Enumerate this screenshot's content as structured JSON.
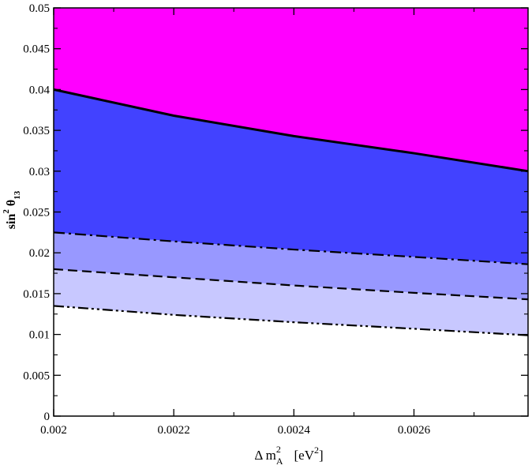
{
  "chart_data": {
    "type": "area",
    "title": "",
    "xlabel": {
      "main": "Δ m",
      "sup": "2",
      "sub": "A",
      "unit_open": "[eV",
      "unit_sup": "2",
      "unit_close": "]"
    },
    "ylabel": {
      "main": "sin",
      "sup": "2",
      "theta": "θ",
      "sub": "13"
    },
    "xlim": [
      0.002,
      0.00279
    ],
    "ylim": [
      0,
      0.05
    ],
    "x_ticks": [
      0.002,
      0.0022,
      0.0024,
      0.0026
    ],
    "x_tick_labels": [
      "0.002",
      "0.0022",
      "0.0024",
      "0.0026"
    ],
    "y_ticks": [
      0,
      0.005,
      0.01,
      0.015,
      0.02,
      0.025,
      0.03,
      0.035,
      0.04,
      0.045,
      0.05
    ],
    "y_tick_labels": [
      "0",
      "0.005",
      "0.01",
      "0.015",
      "0.02",
      "0.025",
      "0.03",
      "0.035",
      "0.04",
      "0.045",
      "0.05"
    ],
    "grid": false,
    "x": [
      0.002,
      0.0022,
      0.0024,
      0.0026,
      0.00279
    ],
    "series": [
      {
        "style": "solid",
        "values": [
          0.04,
          0.0368,
          0.0343,
          0.0322,
          0.03
        ]
      },
      {
        "style": "dash-dot",
        "values": [
          0.0225,
          0.0214,
          0.0204,
          0.0195,
          0.0186
        ]
      },
      {
        "style": "dashed",
        "values": [
          0.018,
          0.017,
          0.016,
          0.0151,
          0.0143
        ]
      },
      {
        "style": "dash-dot-dot",
        "values": [
          0.0135,
          0.0124,
          0.0115,
          0.0107,
          0.0099
        ]
      }
    ],
    "regions": [
      {
        "between": [
          "solid",
          "top"
        ],
        "color": "#ff00ff"
      },
      {
        "between": [
          "dash-dot",
          "solid"
        ],
        "color": "#4242ff"
      },
      {
        "between": [
          "dashed",
          "dash-dot"
        ],
        "color": "#9898ff"
      },
      {
        "between": [
          "dash-dot-dot",
          "dashed"
        ],
        "color": "#c8c8ff"
      },
      {
        "between": [
          "bottom",
          "dash-dot-dot"
        ],
        "color": "#ffffff"
      }
    ]
  }
}
